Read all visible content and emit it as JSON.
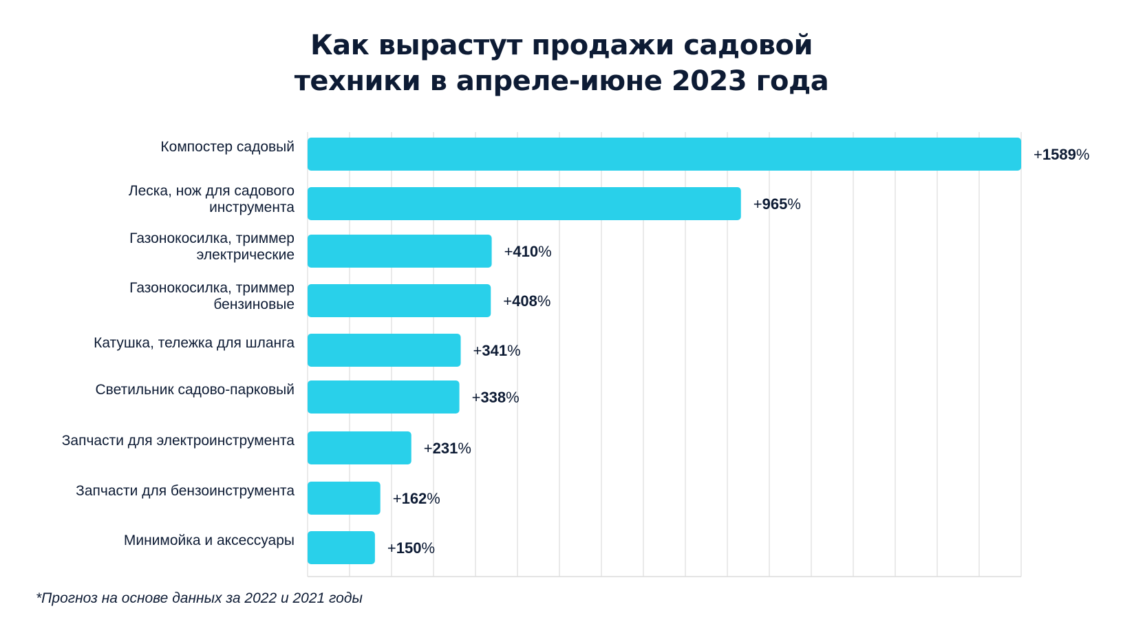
{
  "title_line1": "Как вырастут продажи садовой",
  "title_line2": "техники в апреле-июне 2023 года",
  "footnote": "*Прогноз на основе данных за 2022 и 2021 годы",
  "colors": {
    "bar": "#29d0ea",
    "text": "#0d1b34",
    "grid": "#dcdcdc"
  },
  "chart_data": {
    "type": "bar",
    "orientation": "horizontal",
    "title": "Как вырастут продажи садовой техники в апреле-июне 2023 года",
    "categories": [
      [
        "Компостер садовый"
      ],
      [
        "Леска, нож для садового",
        "инструмента"
      ],
      [
        "Газонокосилка, триммер",
        "электрические"
      ],
      [
        "Газонокосилка, триммер",
        "бензиновые"
      ],
      [
        "Катушка, тележка для шланга"
      ],
      [
        "Светильник садово-парковый"
      ],
      [
        "Запчасти для электроинструмента"
      ],
      [
        "Запчасти для бензоинструмента"
      ],
      [
        "Минимойка и аксессуары"
      ]
    ],
    "values": [
      1589,
      965,
      410,
      408,
      341,
      338,
      231,
      162,
      150
    ],
    "value_prefix": "+",
    "value_suffix": "%",
    "xlim": [
      0,
      1589
    ],
    "grid": true
  }
}
